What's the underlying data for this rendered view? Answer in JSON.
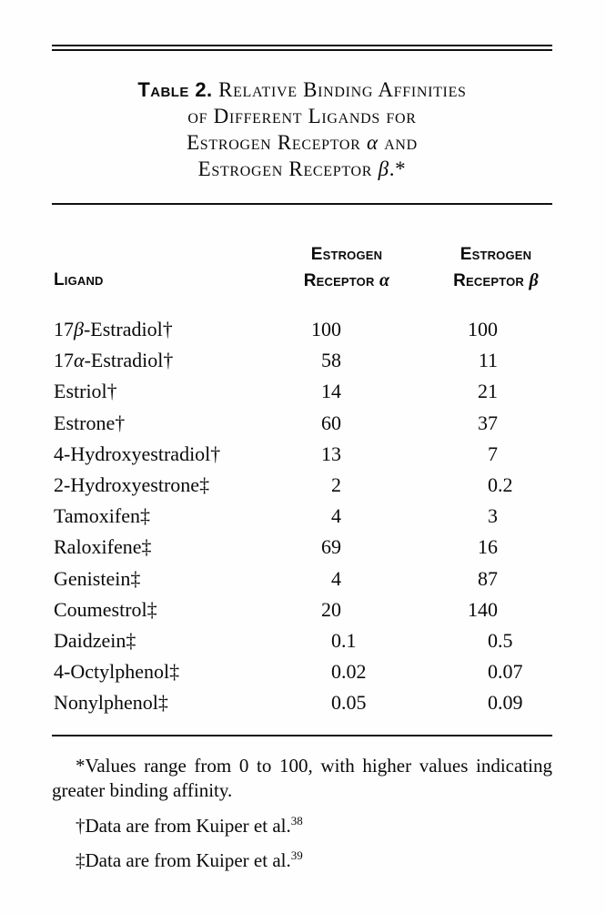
{
  "page": {
    "background": "#fefefe",
    "text_color": "#0a0a0a",
    "rule_color": "#111111"
  },
  "table": {
    "label": "Table 2.",
    "title_lines": [
      "Relative Binding Affinities",
      "of Different Ligands for",
      "Estrogen Receptor α and",
      "Estrogen Receptor β.*"
    ],
    "columns": {
      "ligand": "Ligand",
      "alpha": [
        "Estrogen",
        "Receptor α"
      ],
      "beta": [
        "Estrogen",
        "Receptor β"
      ]
    },
    "rows": [
      {
        "ligand": "17β-Estradiol†",
        "alpha": "100",
        "beta": "100"
      },
      {
        "ligand": "17α-Estradiol†",
        "alpha": "58",
        "beta": "11"
      },
      {
        "ligand": "Estriol†",
        "alpha": "14",
        "beta": "21"
      },
      {
        "ligand": "Estrone†",
        "alpha": "60",
        "beta": "37"
      },
      {
        "ligand": "4-Hydroxyestradiol†",
        "alpha": "13",
        "beta": "7"
      },
      {
        "ligand": "2-Hydroxyestrone‡",
        "alpha": "2",
        "beta": "0.2"
      },
      {
        "ligand": "Tamoxifen‡",
        "alpha": "4",
        "beta": "3"
      },
      {
        "ligand": "Raloxifene‡",
        "alpha": "69",
        "beta": "16"
      },
      {
        "ligand": "Genistein‡",
        "alpha": "4",
        "beta": "87"
      },
      {
        "ligand": "Coumestrol‡",
        "alpha": "20",
        "beta": "140"
      },
      {
        "ligand": "Daidzein‡",
        "alpha": "0.1",
        "beta": "0.5"
      },
      {
        "ligand": "4-Octylphenol‡",
        "alpha": "0.02",
        "beta": "0.07"
      },
      {
        "ligand": "Nonylphenol‡",
        "alpha": "0.05",
        "beta": "0.09"
      }
    ],
    "footnotes": [
      {
        "marker": "*",
        "text": "Values range from 0 to 100, with higher values indicating greater binding affinity.",
        "sup": ""
      },
      {
        "marker": "†",
        "text": "Data are from Kuiper et al.",
        "sup": "38"
      },
      {
        "marker": "‡",
        "text": "Data are from Kuiper et al.",
        "sup": "39"
      }
    ]
  }
}
